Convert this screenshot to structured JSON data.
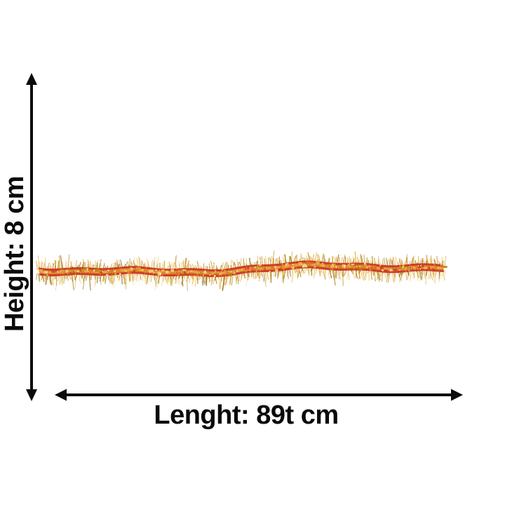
{
  "image": {
    "kind": "product-dimension-diagram",
    "subject": "gold-tinsel-garland",
    "background": "#ffffff"
  },
  "labels": {
    "height": "Height: 8 cm",
    "length": "Lenght: 89t cm"
  },
  "style": {
    "text_color": "#0a0a0a",
    "arrow_color": "#0a0a0a"
  },
  "garland": {
    "band_colors": [
      "#cd3a2c",
      "#e0842c"
    ],
    "texture_colors": [
      "#d9a92f",
      "#e8b84a",
      "#c8451f",
      "#e06a28",
      "#f0d584",
      "#cd3a2c",
      "#b8860b"
    ],
    "fringe_colors": [
      "#d9a92f",
      "#e6bc4a",
      "#c8921f",
      "#a87c15",
      "#f0d584",
      "#e89b33",
      "#8f6a14"
    ],
    "sparkle_colors": [
      "#ffe9a0",
      "#fff3c4",
      "#ffd957"
    ],
    "center_thread_color": "#e8b84b"
  }
}
